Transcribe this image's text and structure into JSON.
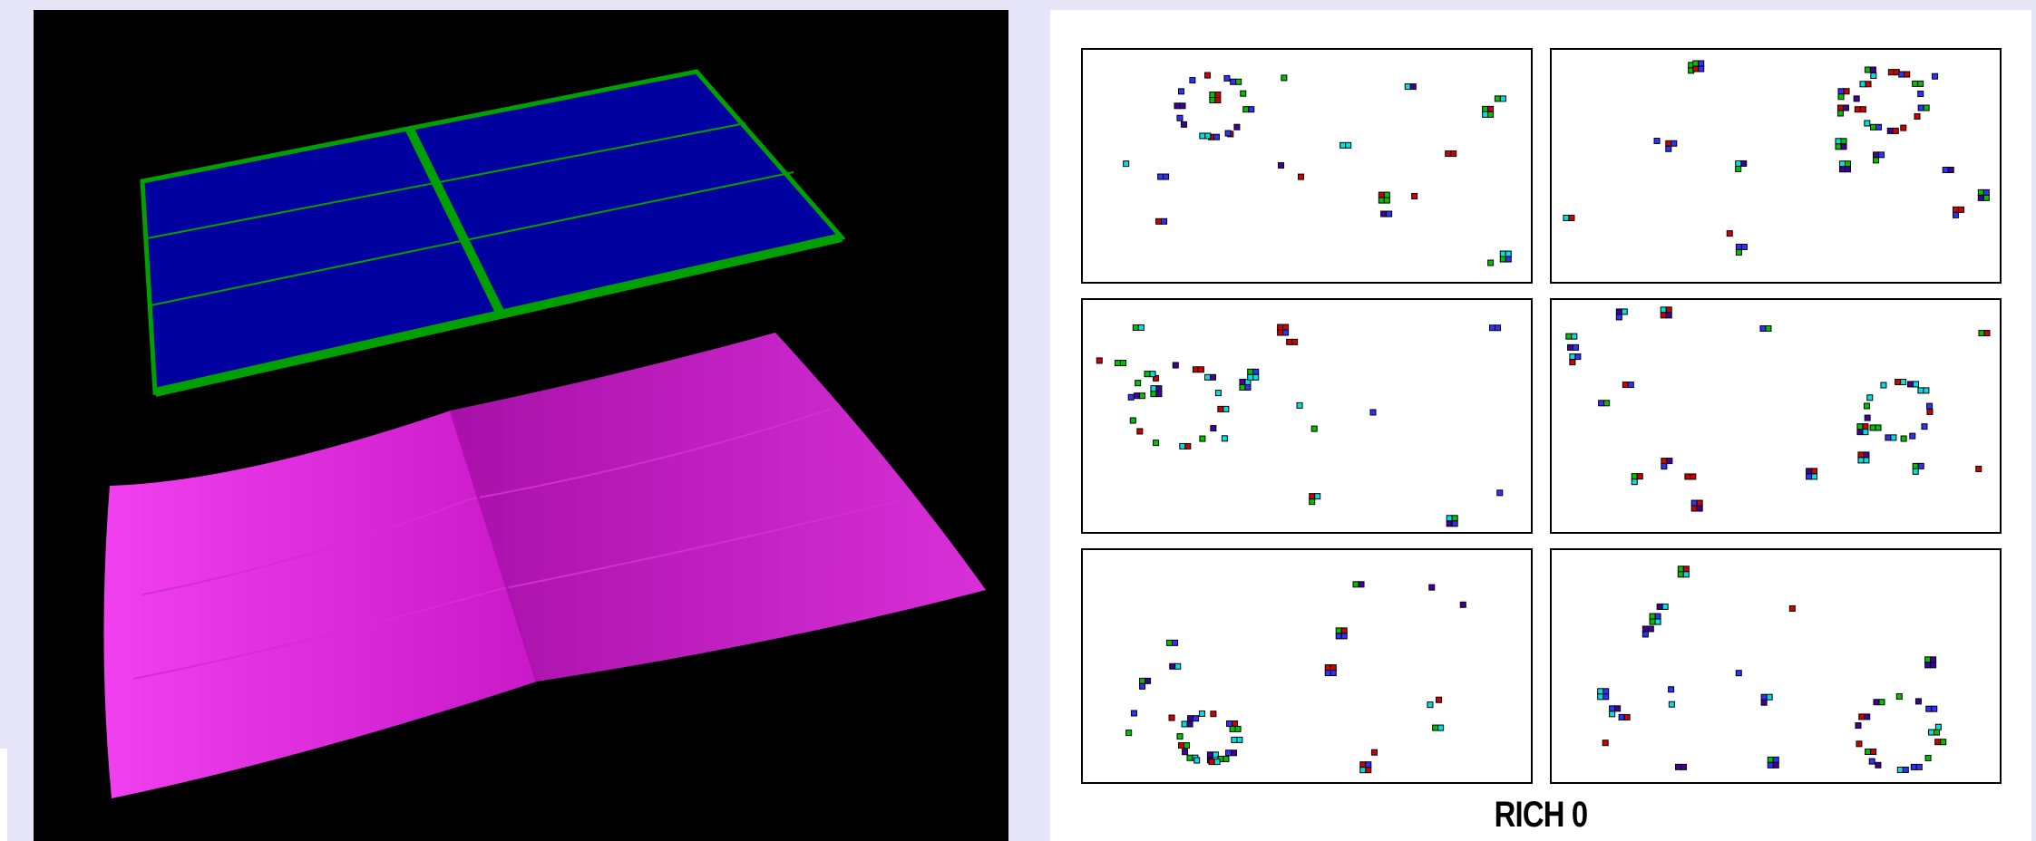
{
  "left_view": {
    "flat_plane": {
      "fill_color": "#0000a0",
      "frame_color": "#00a000",
      "rows": 3,
      "columns": 2
    },
    "curved_surface": {
      "fill_color": "#e020e0",
      "shade_color": "#a010a0"
    }
  },
  "right_view": {
    "panel_grid": {
      "rows": 3,
      "columns": 2
    },
    "hit_colors": [
      "#3030ff",
      "#d00000",
      "#00c000",
      "#00e0e0",
      "#4000a0"
    ],
    "caption": "RICH 0"
  }
}
